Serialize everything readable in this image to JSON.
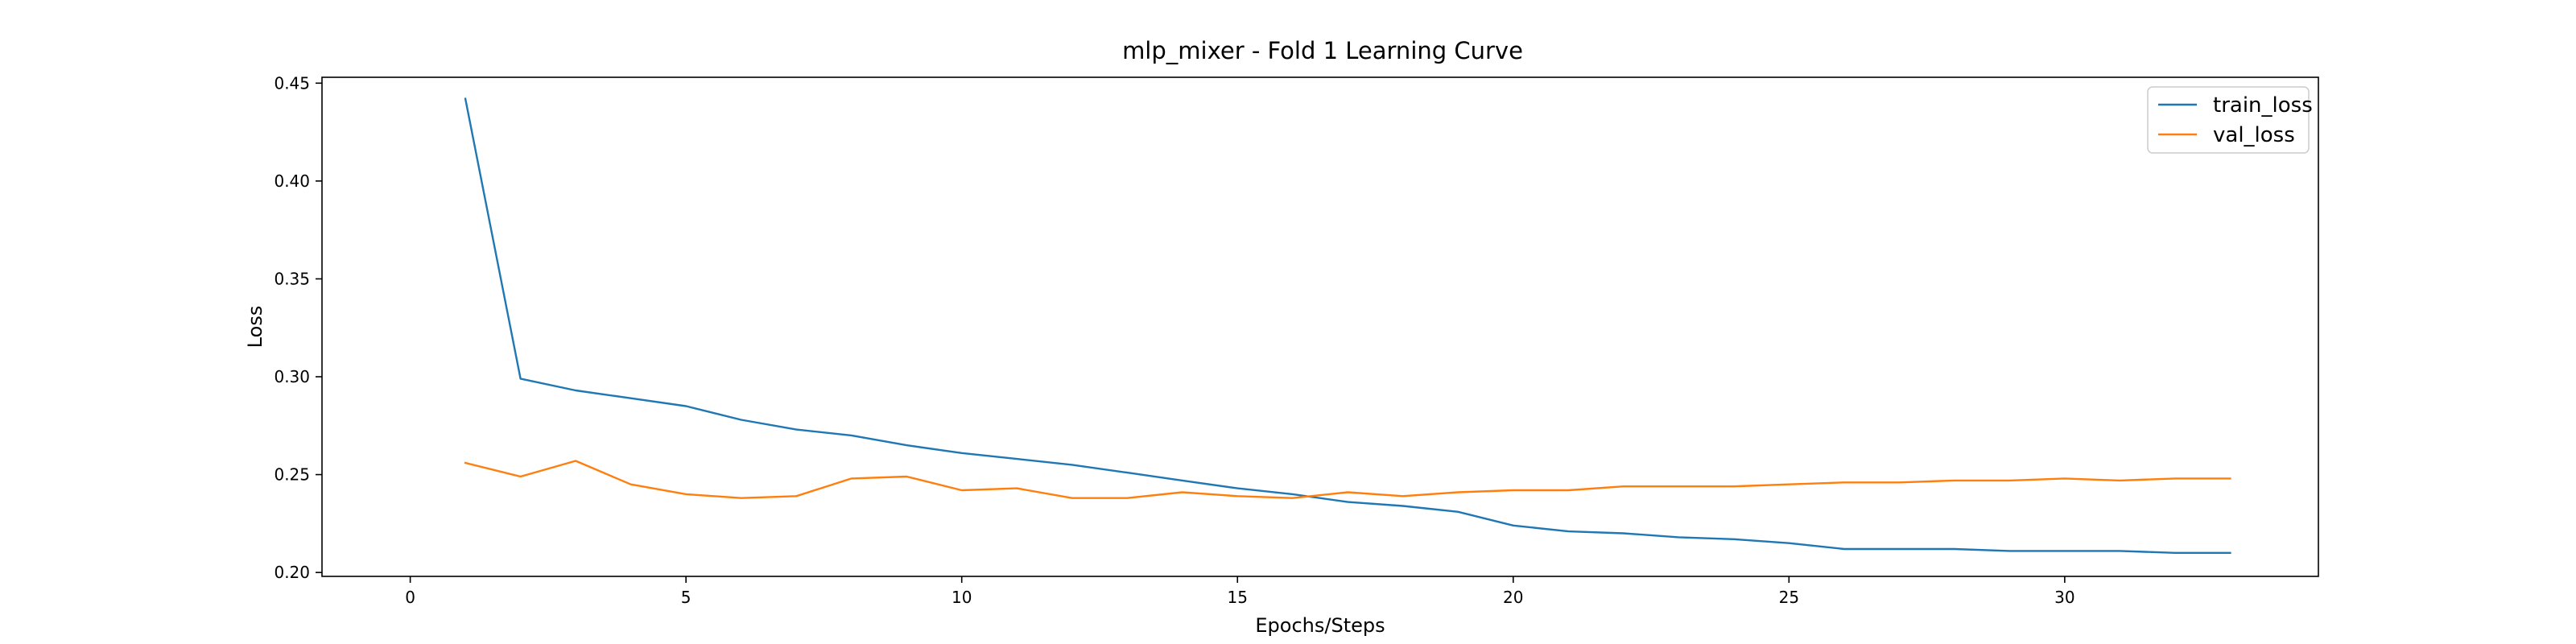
{
  "chart_data": {
    "type": "line",
    "title": "mlp_mixer - Fold 1 Learning Curve",
    "xlabel": "Epochs/Steps",
    "ylabel": "Loss",
    "xlim": [
      -1.6,
      34.6
    ],
    "ylim": [
      0.198,
      0.453
    ],
    "xticks": [
      0,
      5,
      10,
      15,
      20,
      25,
      30
    ],
    "yticks": [
      0.2,
      0.25,
      0.3,
      0.35,
      0.4,
      0.45
    ],
    "ytick_labels": [
      "0.20",
      "0.25",
      "0.30",
      "0.35",
      "0.40",
      "0.45"
    ],
    "grid": false,
    "legend_position": "top-right",
    "x": [
      1,
      2,
      3,
      4,
      5,
      6,
      7,
      8,
      9,
      10,
      11,
      12,
      13,
      14,
      15,
      16,
      17,
      18,
      19,
      20,
      21,
      22,
      23,
      24,
      25,
      26,
      27,
      28,
      29,
      30,
      31,
      32,
      33
    ],
    "series": [
      {
        "name": "train_loss",
        "color": "#1f77b4",
        "values": [
          0.442,
          0.299,
          0.293,
          0.289,
          0.285,
          0.278,
          0.273,
          0.27,
          0.265,
          0.261,
          0.258,
          0.255,
          0.251,
          0.247,
          0.243,
          0.24,
          0.236,
          0.234,
          0.231,
          0.224,
          0.221,
          0.22,
          0.218,
          0.217,
          0.215,
          0.212,
          0.212,
          0.212,
          0.211,
          0.211,
          0.211,
          0.21,
          0.21
        ]
      },
      {
        "name": "val_loss",
        "color": "#ff7f0e",
        "values": [
          0.256,
          0.249,
          0.257,
          0.245,
          0.24,
          0.238,
          0.239,
          0.248,
          0.249,
          0.242,
          0.243,
          0.238,
          0.238,
          0.241,
          0.239,
          0.238,
          0.241,
          0.239,
          0.241,
          0.242,
          0.242,
          0.244,
          0.244,
          0.244,
          0.245,
          0.246,
          0.246,
          0.247,
          0.247,
          0.248,
          0.247,
          0.248,
          0.248
        ]
      }
    ]
  }
}
